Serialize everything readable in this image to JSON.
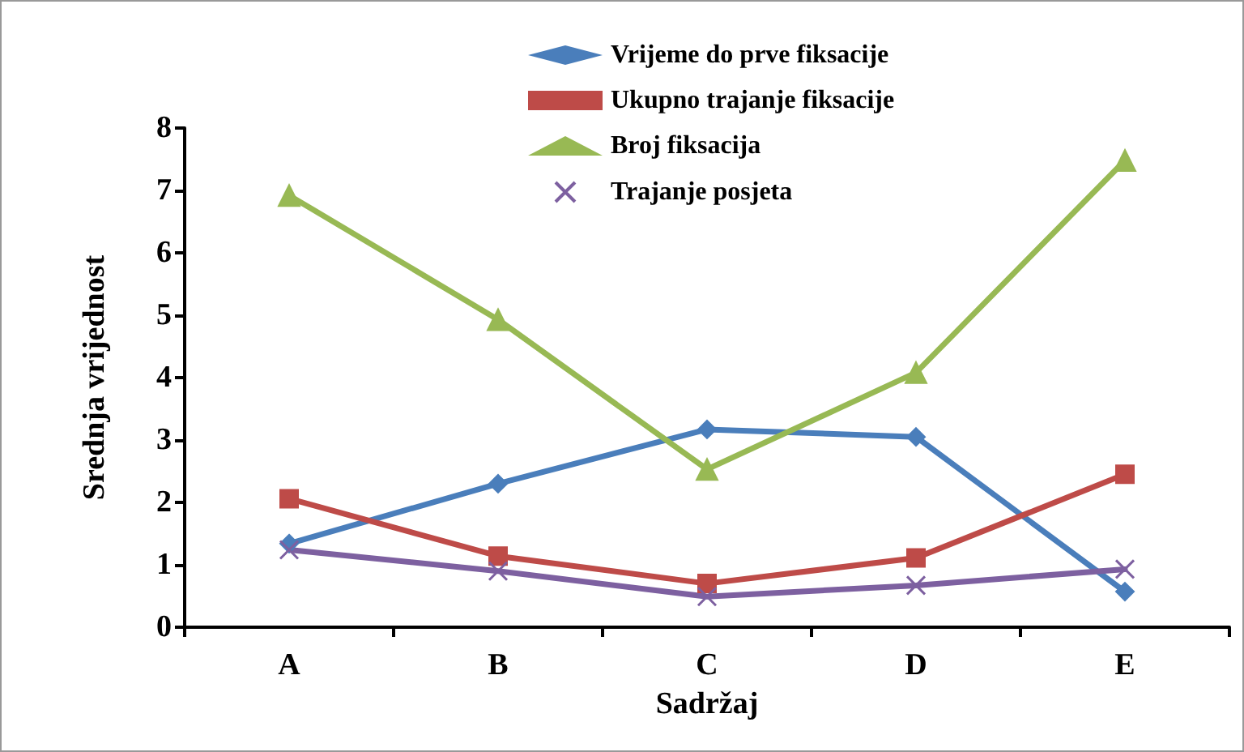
{
  "chart_data": {
    "type": "line",
    "xlabel": "Sadržaj",
    "ylabel": "Srednja vrijednost",
    "categories": [
      "A",
      "B",
      "C",
      "D",
      "E"
    ],
    "series": [
      {
        "name": "Vrijeme do prve fiksacije",
        "color": "#4a7ebb",
        "marker": "diamond",
        "values": [
          1.34,
          2.3,
          3.17,
          3.05,
          0.57
        ]
      },
      {
        "name": "Ukupno trajanje fiksacije",
        "color": "#be4b48",
        "marker": "square",
        "values": [
          2.06,
          1.14,
          0.7,
          1.11,
          2.45
        ]
      },
      {
        "name": "Broj fiksacija",
        "color": "#98b954",
        "marker": "triangle",
        "values": [
          6.92,
          4.93,
          2.53,
          4.08,
          7.48
        ]
      },
      {
        "name": "Trajanje posjeta",
        "color": "#7d60a0",
        "marker": "cross",
        "values": [
          1.24,
          0.9,
          0.49,
          0.67,
          0.93
        ]
      }
    ],
    "ylim": [
      0,
      8
    ],
    "yticks": [
      0,
      1,
      2,
      3,
      4,
      5,
      6,
      7,
      8
    ],
    "grid": false,
    "legend": "top",
    "line_style": "solid"
  }
}
